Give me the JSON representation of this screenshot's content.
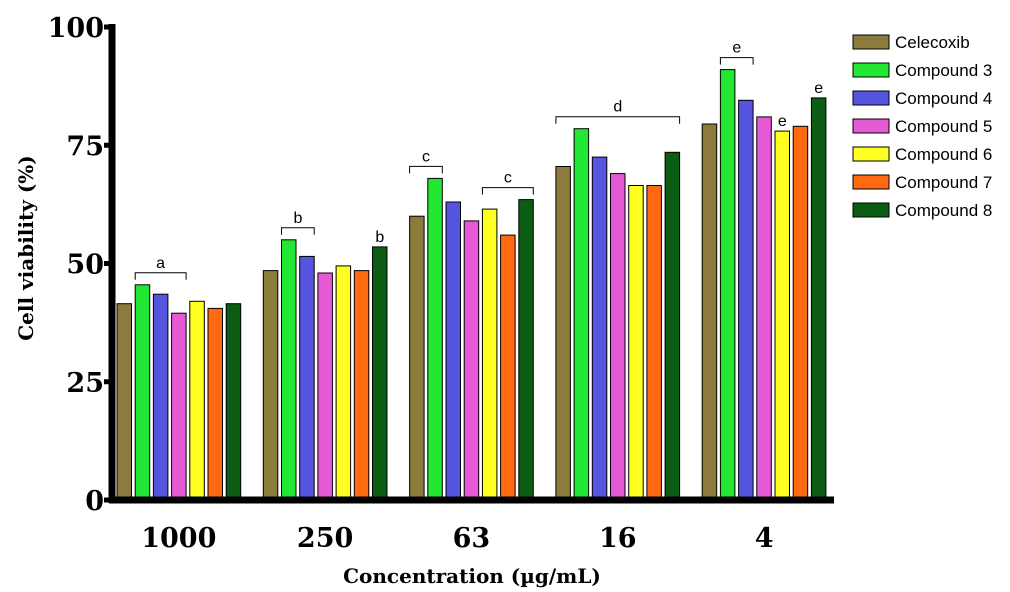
{
  "chart_data": {
    "type": "bar",
    "xlabel": "Concentration (µg/mL)",
    "ylabel": "Cell viability (%)",
    "ylim": [
      0,
      100
    ],
    "yticks": [
      "0",
      "25",
      "50",
      "75",
      "100"
    ],
    "categories": [
      "1000",
      "250",
      "63",
      "16",
      "4"
    ],
    "grid": false,
    "legend_position": "top-right",
    "series": [
      {
        "name": "Celecoxib",
        "color": "#8B7B3C",
        "values": [
          41.5,
          48.5,
          60.0,
          70.5,
          79.5
        ]
      },
      {
        "name": "Compound 3",
        "color": "#22E833",
        "values": [
          45.5,
          55.0,
          68.0,
          78.5,
          91.0
        ]
      },
      {
        "name": "Compound 4",
        "color": "#5555E0",
        "values": [
          43.5,
          51.5,
          63.0,
          72.5,
          84.5
        ]
      },
      {
        "name": "Compound 5",
        "color": "#E659D5",
        "values": [
          39.5,
          48.0,
          59.0,
          69.0,
          81.0
        ]
      },
      {
        "name": "Compound 6",
        "color": "#FFFF22",
        "values": [
          42.0,
          49.5,
          61.5,
          66.5,
          78.0
        ]
      },
      {
        "name": "Compound 7",
        "color": "#FF6A10",
        "values": [
          40.5,
          48.5,
          56.0,
          66.5,
          79.0
        ]
      },
      {
        "name": "Compound 8",
        "color": "#0D5C14",
        "values": [
          41.5,
          53.5,
          63.5,
          73.5,
          85.0
        ]
      }
    ],
    "annotations": [
      {
        "label": "a",
        "type": "bracket",
        "category": 0,
        "from_series": 1,
        "to_series": 3
      },
      {
        "label": "b",
        "type": "bracket",
        "category": 1,
        "from_series": 1,
        "to_series": 2
      },
      {
        "label": "b",
        "type": "single",
        "category": 1,
        "series": 6
      },
      {
        "label": "c",
        "type": "bracket",
        "category": 2,
        "from_series": 0,
        "to_series": 1
      },
      {
        "label": "c",
        "type": "bracket",
        "category": 2,
        "from_series": 4,
        "to_series": 6
      },
      {
        "label": "d",
        "type": "bracket",
        "category": 3,
        "from_series": 0,
        "to_series": 6
      },
      {
        "label": "e",
        "type": "bracket",
        "category": 4,
        "from_series": 1,
        "to_series": 2
      },
      {
        "label": "e",
        "type": "single",
        "category": 4,
        "series": 4
      },
      {
        "label": "e",
        "type": "single",
        "category": 4,
        "series": 6
      }
    ]
  }
}
